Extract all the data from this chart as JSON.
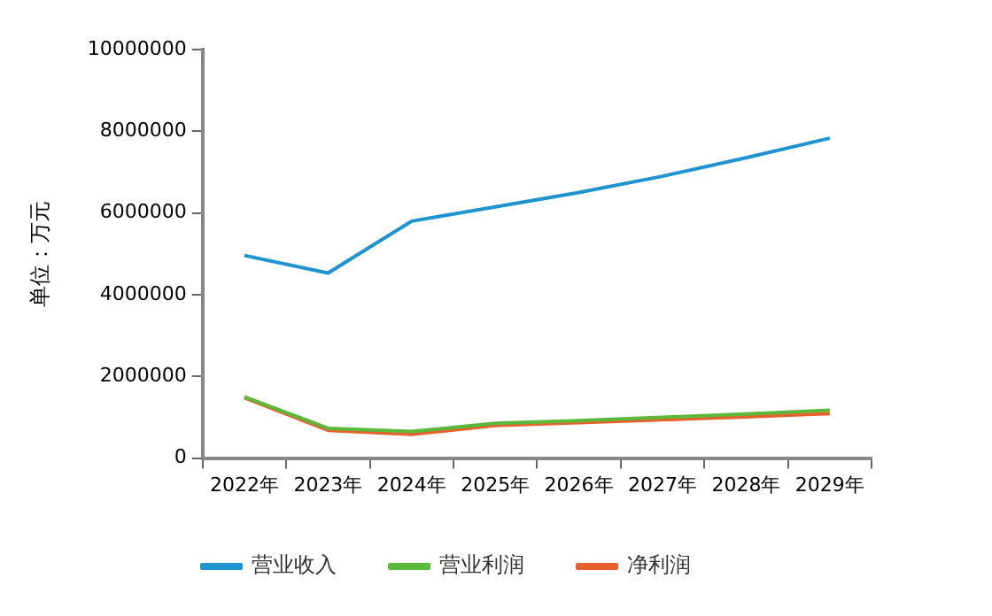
{
  "chart_data": {
    "type": "line",
    "ylabel": "单位：万元",
    "categories": [
      "2022年",
      "2023年",
      "2024年",
      "2025年",
      "2026年",
      "2027年",
      "2028年",
      "2029年"
    ],
    "series": [
      {
        "name": "营业收入",
        "color": "#1f92d0",
        "values": [
          4960000,
          4530000,
          5800000,
          6150000,
          6500000,
          6900000,
          7350000,
          7830000
        ]
      },
      {
        "name": "营业利润",
        "color": "#5cb83a",
        "values": [
          1500000,
          730000,
          650000,
          850000,
          920000,
          1000000,
          1080000,
          1170000
        ]
      },
      {
        "name": "净利润",
        "color": "#e8602c",
        "values": [
          1480000,
          680000,
          580000,
          800000,
          870000,
          940000,
          1010000,
          1090000
        ]
      }
    ],
    "ylim": [
      0,
      10000000
    ],
    "yticks": [
      0,
      2000000,
      4000000,
      6000000,
      8000000,
      10000000
    ],
    "grid": false,
    "legend": "bottom",
    "marker": "none",
    "line_style": "solid"
  }
}
